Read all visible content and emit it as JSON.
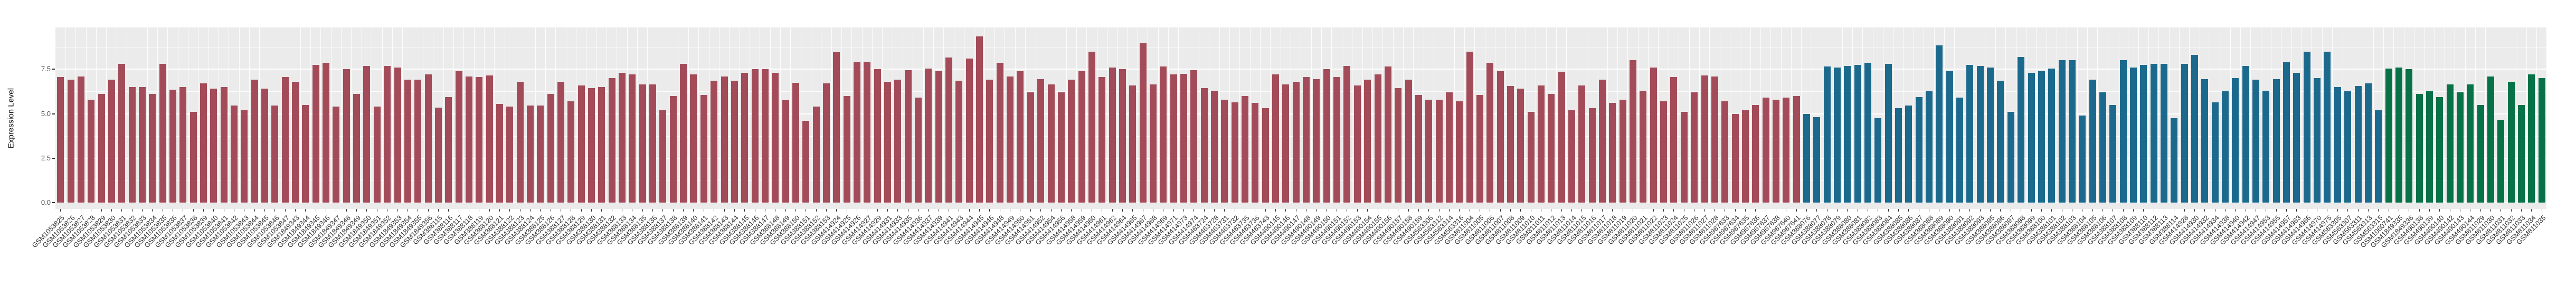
{
  "chart_data": {
    "type": "bar",
    "title": "",
    "xlabel": "",
    "ylabel": "Expression Level",
    "ylim": [
      0,
      9.85
    ],
    "yticks": [
      0.0,
      2.5,
      5.0,
      7.5
    ],
    "yticks_minor": [
      1.25,
      3.75,
      6.25,
      8.75
    ],
    "grid": true,
    "legend_position": "none",
    "panel_background": "#EBEBEB",
    "gridline_color": "#FFFFFF",
    "axis_text_color": "#4D4D4D",
    "groups": [
      {
        "name": "group-1-red",
        "color": "#A34B58",
        "samples": [
          [
            "GSM1053825",
            7.05
          ],
          [
            "GSM1053826",
            6.9
          ],
          [
            "GSM1053827",
            7.1
          ],
          [
            "GSM1053828",
            5.8
          ],
          [
            "GSM1053829",
            6.1
          ],
          [
            "GSM1053830",
            6.9
          ],
          [
            "GSM1053831",
            7.8
          ],
          [
            "GSM1053832",
            6.5
          ],
          [
            "GSM1053833",
            6.5
          ],
          [
            "GSM1053834",
            6.1
          ],
          [
            "GSM1053835",
            7.8
          ],
          [
            "GSM1053836",
            6.35
          ],
          [
            "GSM1053837",
            6.5
          ],
          [
            "GSM1053838",
            5.1
          ],
          [
            "GSM1053839",
            6.7
          ],
          [
            "GSM1053840",
            6.4
          ],
          [
            "GSM1053841",
            6.5
          ],
          [
            "GSM1053842",
            5.45
          ],
          [
            "GSM1053843",
            5.2
          ],
          [
            "GSM1053844",
            6.9
          ],
          [
            "GSM1053845",
            6.4
          ],
          [
            "GSM1053846",
            5.45
          ],
          [
            "GSM1053847",
            7.05
          ],
          [
            "GSM1849343",
            6.8
          ],
          [
            "GSM1849344",
            5.5
          ],
          [
            "GSM1849345",
            7.75
          ],
          [
            "GSM1849346",
            7.85
          ],
          [
            "GSM1849347",
            5.4
          ],
          [
            "GSM1849348",
            7.5
          ],
          [
            "GSM1849349",
            6.1
          ],
          [
            "GSM1849350",
            7.7
          ],
          [
            "GSM1849351",
            5.4
          ],
          [
            "GSM1849352",
            7.7
          ],
          [
            "GSM1849353",
            7.6
          ],
          [
            "GSM1849354",
            6.9
          ],
          [
            "GSM1849355",
            6.9
          ],
          [
            "GSM1849356",
            7.2
          ],
          [
            "GSM388115",
            5.35
          ],
          [
            "GSM388116",
            5.95
          ],
          [
            "GSM388117",
            7.4
          ],
          [
            "GSM388118",
            7.1
          ],
          [
            "GSM388119",
            7.05
          ],
          [
            "GSM388120",
            7.15
          ],
          [
            "GSM388121",
            5.55
          ],
          [
            "GSM388122",
            5.4
          ],
          [
            "GSM388123",
            6.8
          ],
          [
            "GSM388124",
            5.45
          ],
          [
            "GSM388125",
            5.45
          ],
          [
            "GSM388126",
            6.1
          ],
          [
            "GSM388127",
            6.8
          ],
          [
            "GSM388128",
            5.7
          ],
          [
            "GSM388129",
            6.6
          ],
          [
            "GSM388130",
            6.45
          ],
          [
            "GSM388131",
            6.5
          ],
          [
            "GSM388132",
            7.0
          ],
          [
            "GSM388133",
            7.3
          ],
          [
            "GSM388134",
            7.2
          ],
          [
            "GSM388135",
            6.65
          ],
          [
            "GSM388136",
            6.65
          ],
          [
            "GSM388137",
            5.2
          ],
          [
            "GSM388138",
            6.0
          ],
          [
            "GSM388139",
            7.8
          ],
          [
            "GSM388140",
            7.2
          ],
          [
            "GSM388141",
            6.05
          ],
          [
            "GSM388142",
            6.85
          ],
          [
            "GSM388143",
            7.1
          ],
          [
            "GSM388144",
            6.85
          ],
          [
            "GSM388145",
            7.3
          ],
          [
            "GSM388146",
            7.5
          ],
          [
            "GSM388147",
            7.5
          ],
          [
            "GSM388148",
            7.3
          ],
          [
            "GSM388149",
            5.75
          ],
          [
            "GSM388150",
            6.75
          ],
          [
            "GSM388151",
            4.6
          ],
          [
            "GSM388152",
            5.4
          ],
          [
            "GSM388153",
            6.7
          ],
          [
            "GSM414924",
            8.45
          ],
          [
            "GSM414925",
            6.0
          ],
          [
            "GSM414926",
            7.9
          ],
          [
            "GSM414927",
            7.9
          ],
          [
            "GSM414929",
            7.5
          ],
          [
            "GSM414931",
            6.8
          ],
          [
            "GSM414933",
            6.9
          ],
          [
            "GSM414935",
            7.45
          ],
          [
            "GSM414936",
            5.9
          ],
          [
            "GSM414937",
            7.55
          ],
          [
            "GSM414939",
            7.4
          ],
          [
            "GSM414941",
            8.15
          ],
          [
            "GSM414943",
            6.85
          ],
          [
            "GSM414944",
            8.1
          ],
          [
            "GSM414945",
            9.35
          ],
          [
            "GSM414946",
            6.9
          ],
          [
            "GSM414948",
            7.85
          ],
          [
            "GSM414949",
            7.1
          ],
          [
            "GSM414950",
            7.4
          ],
          [
            "GSM414951",
            6.2
          ],
          [
            "GSM414952",
            6.95
          ],
          [
            "GSM414954",
            6.65
          ],
          [
            "GSM414956",
            6.2
          ],
          [
            "GSM414958",
            6.9
          ],
          [
            "GSM414959",
            7.4
          ],
          [
            "GSM414960",
            8.5
          ],
          [
            "GSM414961",
            7.05
          ],
          [
            "GSM414962",
            7.6
          ],
          [
            "GSM414964",
            7.5
          ],
          [
            "GSM414965",
            6.6
          ],
          [
            "GSM414967",
            8.95
          ],
          [
            "GSM414968",
            6.65
          ],
          [
            "GSM414969",
            7.65
          ],
          [
            "GSM414971",
            7.2
          ],
          [
            "GSM414973",
            7.25
          ],
          [
            "GSM414974",
            7.45
          ],
          [
            "GSM463724",
            6.45
          ],
          [
            "GSM463728",
            6.3
          ],
          [
            "GSM463731",
            5.8
          ],
          [
            "GSM463732",
            5.65
          ],
          [
            "GSM463735",
            6.0
          ],
          [
            "GSM463736",
            5.6
          ],
          [
            "GSM463743",
            5.3
          ],
          [
            "GSM490145",
            7.2
          ],
          [
            "GSM490146",
            6.65
          ],
          [
            "GSM490147",
            6.8
          ],
          [
            "GSM490148",
            7.05
          ],
          [
            "GSM490149",
            6.95
          ],
          [
            "GSM490150",
            7.5
          ],
          [
            "GSM490151",
            7.05
          ],
          [
            "GSM490152",
            7.7
          ],
          [
            "GSM490153",
            6.6
          ],
          [
            "GSM490154",
            6.9
          ],
          [
            "GSM490155",
            7.2
          ],
          [
            "GSM490156",
            7.65
          ],
          [
            "GSM490157",
            6.45
          ],
          [
            "GSM490158",
            6.9
          ],
          [
            "GSM490159",
            6.05
          ],
          [
            "GSM563306",
            5.8
          ],
          [
            "GSM563312",
            5.8
          ],
          [
            "GSM563314",
            6.2
          ],
          [
            "GSM563316",
            5.7
          ],
          [
            "GSM811004",
            8.5
          ],
          [
            "GSM811005",
            6.05
          ],
          [
            "GSM811006",
            7.85
          ],
          [
            "GSM811007",
            7.4
          ],
          [
            "GSM811008",
            6.55
          ],
          [
            "GSM811009",
            6.4
          ],
          [
            "GSM811010",
            5.1
          ],
          [
            "GSM811011",
            6.6
          ],
          [
            "GSM811012",
            6.1
          ],
          [
            "GSM811013",
            7.35
          ],
          [
            "GSM811014",
            5.2
          ],
          [
            "GSM811015",
            6.6
          ],
          [
            "GSM811016",
            5.3
          ],
          [
            "GSM811017",
            6.9
          ],
          [
            "GSM811018",
            5.6
          ],
          [
            "GSM811019",
            5.8
          ],
          [
            "GSM811020",
            8.0
          ],
          [
            "GSM811021",
            6.3
          ],
          [
            "GSM811022",
            7.6
          ],
          [
            "GSM811023",
            5.7
          ],
          [
            "GSM811024",
            7.05
          ],
          [
            "GSM811025",
            5.1
          ],
          [
            "GSM811026",
            6.2
          ],
          [
            "GSM811027",
            7.15
          ],
          [
            "GSM811028",
            7.1
          ],
          [
            "GSM967633",
            5.7
          ],
          [
            "GSM967634",
            5.0
          ],
          [
            "GSM967635",
            5.2
          ],
          [
            "GSM967636",
            5.5
          ],
          [
            "GSM967637",
            5.9
          ],
          [
            "GSM967638",
            5.8
          ],
          [
            "GSM967640",
            5.9
          ],
          [
            "GSM967641",
            6.0
          ]
        ]
      },
      {
        "name": "group-2-blue",
        "color": "#1B6A8E",
        "samples": [
          [
            "GSM388076",
            5.0
          ],
          [
            "GSM388077",
            4.8
          ],
          [
            "GSM388078",
            7.65
          ],
          [
            "GSM388079",
            7.6
          ],
          [
            "GSM388080",
            7.7
          ],
          [
            "GSM388081",
            7.75
          ],
          [
            "GSM388082",
            7.85
          ],
          [
            "GSM388083",
            4.75
          ],
          [
            "GSM388084",
            7.8
          ],
          [
            "GSM388085",
            5.3
          ],
          [
            "GSM388086",
            5.45
          ],
          [
            "GSM388087",
            5.95
          ],
          [
            "GSM388088",
            6.25
          ],
          [
            "GSM388089",
            8.85
          ],
          [
            "GSM388090",
            7.4
          ],
          [
            "GSM388091",
            5.9
          ],
          [
            "GSM388092",
            7.75
          ],
          [
            "GSM388093",
            7.7
          ],
          [
            "GSM388095",
            7.6
          ],
          [
            "GSM388096",
            6.85
          ],
          [
            "GSM388097",
            5.1
          ],
          [
            "GSM388098",
            8.2
          ],
          [
            "GSM388099",
            7.3
          ],
          [
            "GSM388100",
            7.4
          ],
          [
            "GSM388101",
            7.55
          ],
          [
            "GSM388102",
            8.0
          ],
          [
            "GSM388103",
            8.0
          ],
          [
            "GSM388104",
            4.9
          ],
          [
            "GSM388105",
            6.9
          ],
          [
            "GSM388106",
            6.2
          ],
          [
            "GSM388107",
            5.5
          ],
          [
            "GSM388108",
            8.0
          ],
          [
            "GSM388109",
            7.6
          ],
          [
            "GSM388110",
            7.75
          ],
          [
            "GSM388112",
            7.8
          ],
          [
            "GSM388113",
            7.8
          ],
          [
            "GSM388114",
            4.75
          ],
          [
            "GSM414928",
            7.8
          ],
          [
            "GSM414930",
            8.3
          ],
          [
            "GSM414932",
            6.95
          ],
          [
            "GSM414934",
            5.65
          ],
          [
            "GSM414938",
            6.25
          ],
          [
            "GSM414940",
            7.0
          ],
          [
            "GSM414942",
            7.7
          ],
          [
            "GSM414947",
            6.9
          ],
          [
            "GSM414953",
            6.3
          ],
          [
            "GSM414955",
            6.95
          ],
          [
            "GSM414957",
            7.9
          ],
          [
            "GSM414963",
            7.3
          ],
          [
            "GSM414966",
            8.5
          ],
          [
            "GSM414970",
            7.0
          ],
          [
            "GSM414975",
            8.5
          ],
          [
            "GSM563305",
            6.5
          ],
          [
            "GSM563307",
            6.25
          ],
          [
            "GSM563311",
            6.55
          ],
          [
            "GSM563313",
            6.7
          ],
          [
            "GSM563315",
            5.2
          ]
        ]
      },
      {
        "name": "group-3-green",
        "color": "#077148",
        "samples": [
          [
            "GSM1060741",
            7.55
          ],
          [
            "GSM1849335",
            7.6
          ],
          [
            "GSM1849336",
            7.5
          ],
          [
            "GSM490138",
            6.1
          ],
          [
            "GSM490139",
            6.25
          ],
          [
            "GSM490140",
            5.95
          ],
          [
            "GSM490142",
            6.65
          ],
          [
            "GSM490143",
            6.2
          ],
          [
            "GSM490144",
            6.65
          ],
          [
            "GSM811029",
            5.5
          ],
          [
            "GSM811030",
            7.1
          ],
          [
            "GSM811031",
            4.65
          ],
          [
            "GSM811032",
            6.8
          ],
          [
            "GSM811033",
            5.5
          ],
          [
            "GSM811034",
            7.2
          ],
          [
            "GSM811035",
            7.0
          ]
        ]
      }
    ]
  }
}
